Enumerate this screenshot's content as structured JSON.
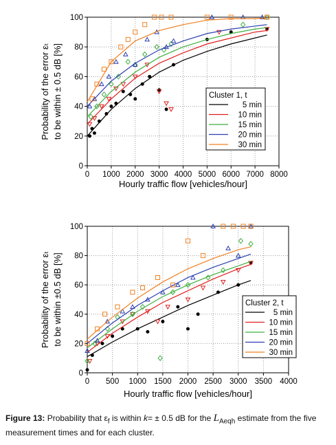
{
  "chart_data": [
    {
      "type": "scatter",
      "xlabel": "Hourly traffic flow [vehicles/hour]",
      "ylabel": [
        "Probability of the error εₜ",
        "to be within ± 0.5 dB [%]"
      ],
      "xlim": [
        0,
        8000
      ],
      "xticks": [
        0,
        1000,
        2000,
        3000,
        4000,
        5000,
        6000,
        7000,
        8000
      ],
      "ylim": [
        0,
        100
      ],
      "yticks": [
        0,
        20,
        40,
        60,
        80,
        100
      ],
      "grid": true,
      "legend_title": "Cluster 1, t",
      "legend": "lower right",
      "series": [
        {
          "name": "5 min",
          "color": "#000000",
          "marker": "circle",
          "x": [
            100,
            200,
            300,
            500,
            800,
            1000,
            1200,
            1500,
            1800,
            2000,
            2300,
            2600,
            3000,
            3300,
            3600,
            5000,
            6000,
            7500
          ],
          "values": [
            20,
            25,
            22,
            30,
            35,
            40,
            42,
            50,
            48,
            45,
            55,
            60,
            51,
            38,
            68,
            85,
            90,
            92
          ],
          "fit_x": [
            0,
            1000,
            2000,
            3000,
            4000,
            5000,
            6000,
            7000,
            7500
          ],
          "fit_values": [
            20,
            38,
            52,
            63,
            71,
            77,
            82,
            86,
            88
          ]
        },
        {
          "name": "10 min",
          "color": "#e02020",
          "marker": "triangle-down",
          "x": [
            100,
            300,
            600,
            900,
            1200,
            1500,
            2000,
            2500,
            3000,
            3300,
            3500,
            5500,
            7500
          ],
          "values": [
            28,
            32,
            40,
            45,
            52,
            55,
            60,
            68,
            50,
            42,
            38,
            90,
            92
          ],
          "fit_x": [
            0,
            1000,
            2000,
            3000,
            4000,
            5000,
            6000,
            7000,
            7500
          ],
          "fit_values": [
            28,
            45,
            59,
            69,
            76,
            82,
            86,
            90,
            91
          ]
        },
        {
          "name": "15 min",
          "color": "#3fae3f",
          "marker": "diamond",
          "x": [
            150,
            400,
            700,
            1000,
            1300,
            1700,
            2000,
            2400,
            2900,
            3200,
            3500,
            6500,
            7500
          ],
          "values": [
            33,
            40,
            48,
            55,
            60,
            70,
            68,
            75,
            80,
            78,
            82,
            95,
            100
          ],
          "fit_x": [
            0,
            1000,
            2000,
            3000,
            4000,
            5000,
            6000,
            7000,
            7500
          ],
          "fit_values": [
            33,
            50,
            63,
            73,
            80,
            85,
            89,
            92,
            93
          ]
        },
        {
          "name": "20 min",
          "color": "#2b3fb0",
          "marker": "triangle-up",
          "x": [
            100,
            300,
            600,
            900,
            1200,
            1600,
            2000,
            2500,
            2900,
            3300,
            3600,
            5200,
            6500,
            7300
          ],
          "values": [
            40,
            45,
            55,
            60,
            70,
            75,
            68,
            85,
            90,
            80,
            84,
            100,
            100,
            100
          ],
          "fit_x": [
            0,
            1000,
            2000,
            3000,
            4000,
            5000,
            6000,
            7000,
            7500
          ],
          "fit_values": [
            40,
            57,
            69,
            78,
            84,
            89,
            92,
            94,
            95
          ]
        },
        {
          "name": "30 min",
          "color": "#f08020",
          "marker": "square",
          "x": [
            200,
            400,
            700,
            1000,
            1400,
            1700,
            2000,
            2400,
            2800,
            3100,
            3500,
            5000,
            6000,
            7500
          ],
          "values": [
            45,
            55,
            65,
            70,
            80,
            85,
            90,
            95,
            100,
            100,
            100,
            100,
            100,
            100
          ],
          "fit_x": [
            0,
            1000,
            2000,
            3000,
            4000,
            5000,
            6000,
            7000,
            7500
          ],
          "fit_values": [
            43,
            70,
            84,
            91,
            95,
            98,
            99,
            99,
            99.5
          ]
        }
      ]
    },
    {
      "type": "scatter",
      "xlabel": "Hourly traffic flow [vehicles/hour]",
      "ylabel": [
        "Probability of the error εₜ",
        "to be within ±0.5 dB [%]"
      ],
      "xlim": [
        0,
        4000
      ],
      "xticks": [
        0,
        500,
        1000,
        1500,
        2000,
        2500,
        3000,
        3500,
        4000
      ],
      "ylim": [
        0,
        100
      ],
      "yticks": [
        0,
        20,
        40,
        60,
        80,
        100
      ],
      "grid": true,
      "legend_title": "Cluster 2,  t",
      "legend": "lower right",
      "series": [
        {
          "name": "5 min",
          "color": "#000000",
          "marker": "circle",
          "x": [
            0,
            100,
            300,
            500,
            700,
            1000,
            1200,
            1500,
            1800,
            2000,
            2200,
            2600,
            3000,
            3250
          ],
          "values": [
            2,
            12,
            20,
            25,
            30,
            30,
            28,
            35,
            45,
            30,
            40,
            55,
            60,
            75
          ],
          "fit_x": [
            0,
            500,
            1000,
            1500,
            2000,
            2500,
            3000,
            3250
          ],
          "fit_values": [
            11,
            21,
            30,
            38,
            46,
            53,
            60,
            63
          ]
        },
        {
          "name": "10 min",
          "color": "#e02020",
          "marker": "triangle-down",
          "x": [
            50,
            200,
            400,
            700,
            900,
            1200,
            1400,
            1600,
            2000,
            2300,
            2700,
            3000,
            3250
          ],
          "values": [
            8,
            20,
            25,
            35,
            40,
            42,
            35,
            45,
            50,
            58,
            62,
            70,
            75
          ],
          "fit_x": [
            0,
            500,
            1000,
            1500,
            2000,
            2500,
            3000,
            3250
          ],
          "fit_values": [
            14,
            27,
            38,
            48,
            56,
            64,
            71,
            74
          ]
        },
        {
          "name": "15 min",
          "color": "#3fae3f",
          "marker": "diamond",
          "x": [
            0,
            150,
            400,
            600,
            900,
            1100,
            1450,
            1700,
            2000,
            2400,
            2700,
            3050,
            3250
          ],
          "values": [
            8,
            20,
            30,
            38,
            40,
            45,
            10,
            55,
            60,
            65,
            70,
            90,
            88
          ],
          "fit_x": [
            0,
            500,
            1000,
            1500,
            2000,
            2500,
            3000,
            3250
          ],
          "fit_values": [
            17,
            30,
            42,
            52,
            60,
            67,
            73,
            76
          ]
        },
        {
          "name": "20 min",
          "color": "#2b3fb0",
          "marker": "triangle-up",
          "x": [
            0,
            200,
            400,
            700,
            900,
            1200,
            1500,
            1800,
            2100,
            2500,
            2800,
            3000,
            3250
          ],
          "values": [
            15,
            22,
            35,
            42,
            45,
            50,
            55,
            60,
            65,
            100,
            85,
            80,
            100
          ],
          "fit_x": [
            0,
            500,
            1000,
            1500,
            2000,
            2500,
            3000,
            3250
          ],
          "fit_values": [
            20,
            34,
            46,
            56,
            65,
            72,
            78,
            81
          ]
        },
        {
          "name": "30 min",
          "color": "#f08020",
          "marker": "square",
          "x": [
            0,
            200,
            350,
            600,
            900,
            1100,
            1400,
            1700,
            2000,
            2300,
            2700,
            2900,
            3100,
            3250
          ],
          "values": [
            20,
            30,
            40,
            45,
            55,
            58,
            65,
            60,
            90,
            80,
            100,
            100,
            100,
            100
          ],
          "fit_x": [
            0,
            500,
            1000,
            1500,
            2000,
            2500,
            3000,
            3250
          ],
          "fit_values": [
            23,
            38,
            51,
            62,
            71,
            78,
            84,
            86
          ]
        }
      ]
    }
  ],
  "caption": [
    "Figure 13:",
    "Probability that",
    "ε",
    "f",
    "is within",
    "k",
    "= ± 0.5 dB for the",
    "L",
    "Aeqh",
    "estimate from the five measurement times and for each cluster."
  ]
}
